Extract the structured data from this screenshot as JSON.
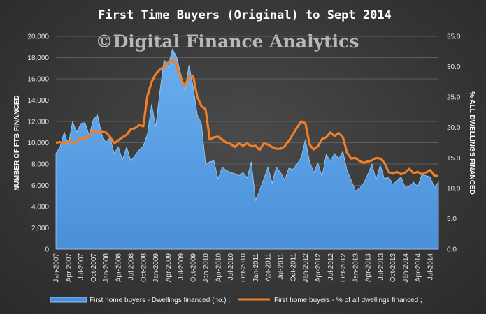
{
  "chart_data": {
    "type": "area+line",
    "title": "First Time Buyers (Original)  to Sept 2014",
    "watermark": "©Digital Finance Analytics",
    "ylabel_left": "NUMBER OF FTB FINANCED",
    "ylabel_right": "% ALL DWELLINGS FINANCED",
    "ylim_left": [
      0,
      20000
    ],
    "ylim_right": [
      0,
      35
    ],
    "yticks_left": [
      "0",
      "2,000",
      "4,000",
      "6,000",
      "8,000",
      "10,000",
      "12,000",
      "14,000",
      "16,000",
      "18,000",
      "20,000"
    ],
    "yticks_right": [
      "0.0",
      "5.0",
      "10.0",
      "15.0",
      "20.0",
      "25.0",
      "30.0",
      "35.0"
    ],
    "grid": true,
    "legend_position": "bottom",
    "x": [
      "Jan-2007",
      "Feb-2007",
      "Mar-2007",
      "Apr-2007",
      "May-2007",
      "Jun-2007",
      "Jul-2007",
      "Aug-2007",
      "Sep-2007",
      "Oct-2007",
      "Nov-2007",
      "Dec-2007",
      "Jan-2008",
      "Feb-2008",
      "Mar-2008",
      "Apr-2008",
      "May-2008",
      "Jun-2008",
      "Jul-2008",
      "Aug-2008",
      "Sep-2008",
      "Oct-2008",
      "Nov-2008",
      "Dec-2008",
      "Jan-2009",
      "Feb-2009",
      "Mar-2009",
      "Apr-2009",
      "May-2009",
      "Jun-2009",
      "Jul-2009",
      "Aug-2009",
      "Sep-2009",
      "Oct-2009",
      "Nov-2009",
      "Dec-2009",
      "Jan-2010",
      "Feb-2010",
      "Mar-2010",
      "Apr-2010",
      "May-2010",
      "Jun-2010",
      "Jul-2010",
      "Aug-2010",
      "Sep-2010",
      "Oct-2010",
      "Nov-2010",
      "Dec-2010",
      "Jan-2011",
      "Feb-2011",
      "Mar-2011",
      "Apr-2011",
      "May-2011",
      "Jun-2011",
      "Jul-2011",
      "Aug-2011",
      "Sep-2011",
      "Oct-2011",
      "Nov-2011",
      "Dec-2011",
      "Jan-2012",
      "Feb-2012",
      "Mar-2012",
      "Apr-2012",
      "May-2012",
      "Jun-2012",
      "Jul-2012",
      "Aug-2012",
      "Sep-2012",
      "Oct-2012",
      "Nov-2012",
      "Dec-2012",
      "Jan-2013",
      "Feb-2013",
      "Mar-2013",
      "Apr-2013",
      "May-2013",
      "Jun-2013",
      "Jul-2013",
      "Aug-2013",
      "Sep-2013",
      "Oct-2013",
      "Nov-2013",
      "Dec-2013",
      "Jan-2014",
      "Feb-2014",
      "Mar-2014",
      "Apr-2014",
      "May-2014",
      "Jun-2014",
      "Jul-2014",
      "Aug-2014",
      "Sep-2014"
    ],
    "x_tick_labels": [
      "Jan-2007",
      "Apr-2007",
      "Jul-2007",
      "Oct-2007",
      "Jan-2008",
      "Apr-2008",
      "Jul-2008",
      "Oct-2008",
      "Jan-2009",
      "Apr-2009",
      "Jul-2009",
      "Oct-2009",
      "Jan-2010",
      "Apr-2010",
      "Jul-2010",
      "Oct-2010",
      "Jan-2011",
      "Apr-2011",
      "Jul-2011",
      "Oct-2011",
      "Jan-2012",
      "Apr-2012",
      "Jul-2012",
      "Oct-2012",
      "Jan-2013",
      "Apr-2013",
      "Jul-2013",
      "Oct-2013",
      "Jan-2014",
      "Apr-2014",
      "Jul-2014"
    ],
    "series": [
      {
        "name": "First home buyers - Dwellings financed (no.) ;",
        "type": "area",
        "axis": "left",
        "color": "#4a90d9",
        "values": [
          9000,
          9600,
          11000,
          9800,
          12000,
          11000,
          11800,
          11900,
          10700,
          12200,
          12600,
          10800,
          10000,
          10500,
          9000,
          9600,
          8400,
          9600,
          8300,
          8800,
          9300,
          9700,
          10800,
          13600,
          11500,
          14800,
          17800,
          17200,
          18800,
          18100,
          16500,
          14900,
          17300,
          15300,
          12600,
          11800,
          8000,
          8200,
          8300,
          6600,
          7700,
          7400,
          7200,
          7100,
          6900,
          7200,
          6700,
          8200,
          4600,
          5500,
          6600,
          7700,
          6200,
          7700,
          7200,
          6500,
          7600,
          7500,
          8000,
          8600,
          10300,
          8200,
          7200,
          8100,
          6800,
          8900,
          8300,
          9000,
          8500,
          9200,
          7400,
          6500,
          5500,
          5700,
          6200,
          7000,
          8000,
          6500,
          7900,
          6600,
          6800,
          6100,
          6400,
          6800,
          5800,
          5900,
          6300,
          5900,
          7000,
          6900,
          6800,
          5800,
          6300
        ]
      },
      {
        "name": "First home buyers - % of all dwellings financed ;",
        "type": "line",
        "axis": "right",
        "color": "#f07f2a",
        "values": [
          17.5,
          17.6,
          17.3,
          17.8,
          17.4,
          17.7,
          18.3,
          18.0,
          18.8,
          19.5,
          19.2,
          19.3,
          19.2,
          18.5,
          17.4,
          17.9,
          18.4,
          18.8,
          19.7,
          19.9,
          20.4,
          20.2,
          25.2,
          27.5,
          28.8,
          29.5,
          30.0,
          30.7,
          31.2,
          30.4,
          28.0,
          26.8,
          28.4,
          28.5,
          25.0,
          23.5,
          23.0,
          18.0,
          18.4,
          18.5,
          18.0,
          17.5,
          17.3,
          16.8,
          17.4,
          17.0,
          17.4,
          16.9,
          17.0,
          16.3,
          17.4,
          17.2,
          16.8,
          16.5,
          16.5,
          16.9,
          17.8,
          18.9,
          20.0,
          21.0,
          20.7,
          17.2,
          16.4,
          16.9,
          18.1,
          18.4,
          19.2,
          18.6,
          19.1,
          18.4,
          15.9,
          14.9,
          15.0,
          14.5,
          14.2,
          14.4,
          14.6,
          15.0,
          14.9,
          14.2,
          12.7,
          12.4,
          12.7,
          12.3,
          12.6,
          13.2,
          12.5,
          12.7,
          12.3,
          12.6,
          13.0,
          12.1,
          12.0
        ]
      }
    ]
  }
}
